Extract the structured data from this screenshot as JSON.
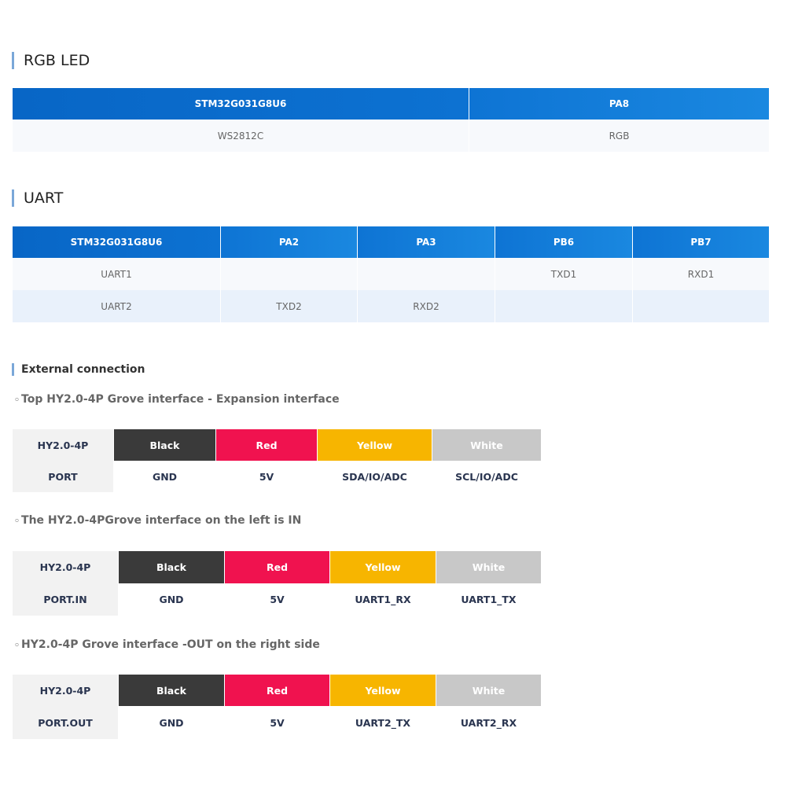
{
  "rgb_led": {
    "title": "RGB LED",
    "table": {
      "header": [
        "STM32G031G8U6",
        "PA8"
      ],
      "rows": [
        [
          "WS2812C",
          "RGB"
        ]
      ]
    }
  },
  "uart": {
    "title": "UART",
    "table": {
      "header": [
        "STM32G031G8U6",
        "PA2",
        "PA3",
        "PB6",
        "PB7"
      ],
      "rows": [
        [
          "UART1",
          null,
          null,
          "TXD1",
          "RXD1"
        ],
        [
          "UART2",
          "TXD2",
          "RXD2",
          null,
          null
        ]
      ]
    }
  },
  "external": {
    "title": "External connection",
    "interfaces": [
      {
        "title": "Top HY2.0-4P Grove interface - Expansion interface",
        "rows": [
          [
            "HY2.0-4P",
            "Black",
            "Red",
            "Yellow",
            "White"
          ],
          [
            "PORT",
            "GND",
            "5V",
            "SDA/IO/ADC",
            "SCL/IO/ADC"
          ]
        ]
      },
      {
        "title": "The HY2.0-4PGrove interface on the left is IN",
        "rows": [
          [
            "HY2.0-4P",
            "Black",
            "Red",
            "Yellow",
            "White"
          ],
          [
            "PORT.IN",
            "GND",
            "5V",
            "UART1_RX",
            "UART1_TX"
          ]
        ]
      },
      {
        "title": "HY2.0-4P Grove interface -OUT on the right side",
        "rows": [
          [
            "HY2.0-4P",
            "Black",
            "Red",
            "Yellow",
            "White"
          ],
          [
            "PORT.OUT",
            "GND",
            "5V",
            "UART2_TX",
            "UART2_RX"
          ]
        ]
      }
    ]
  }
}
